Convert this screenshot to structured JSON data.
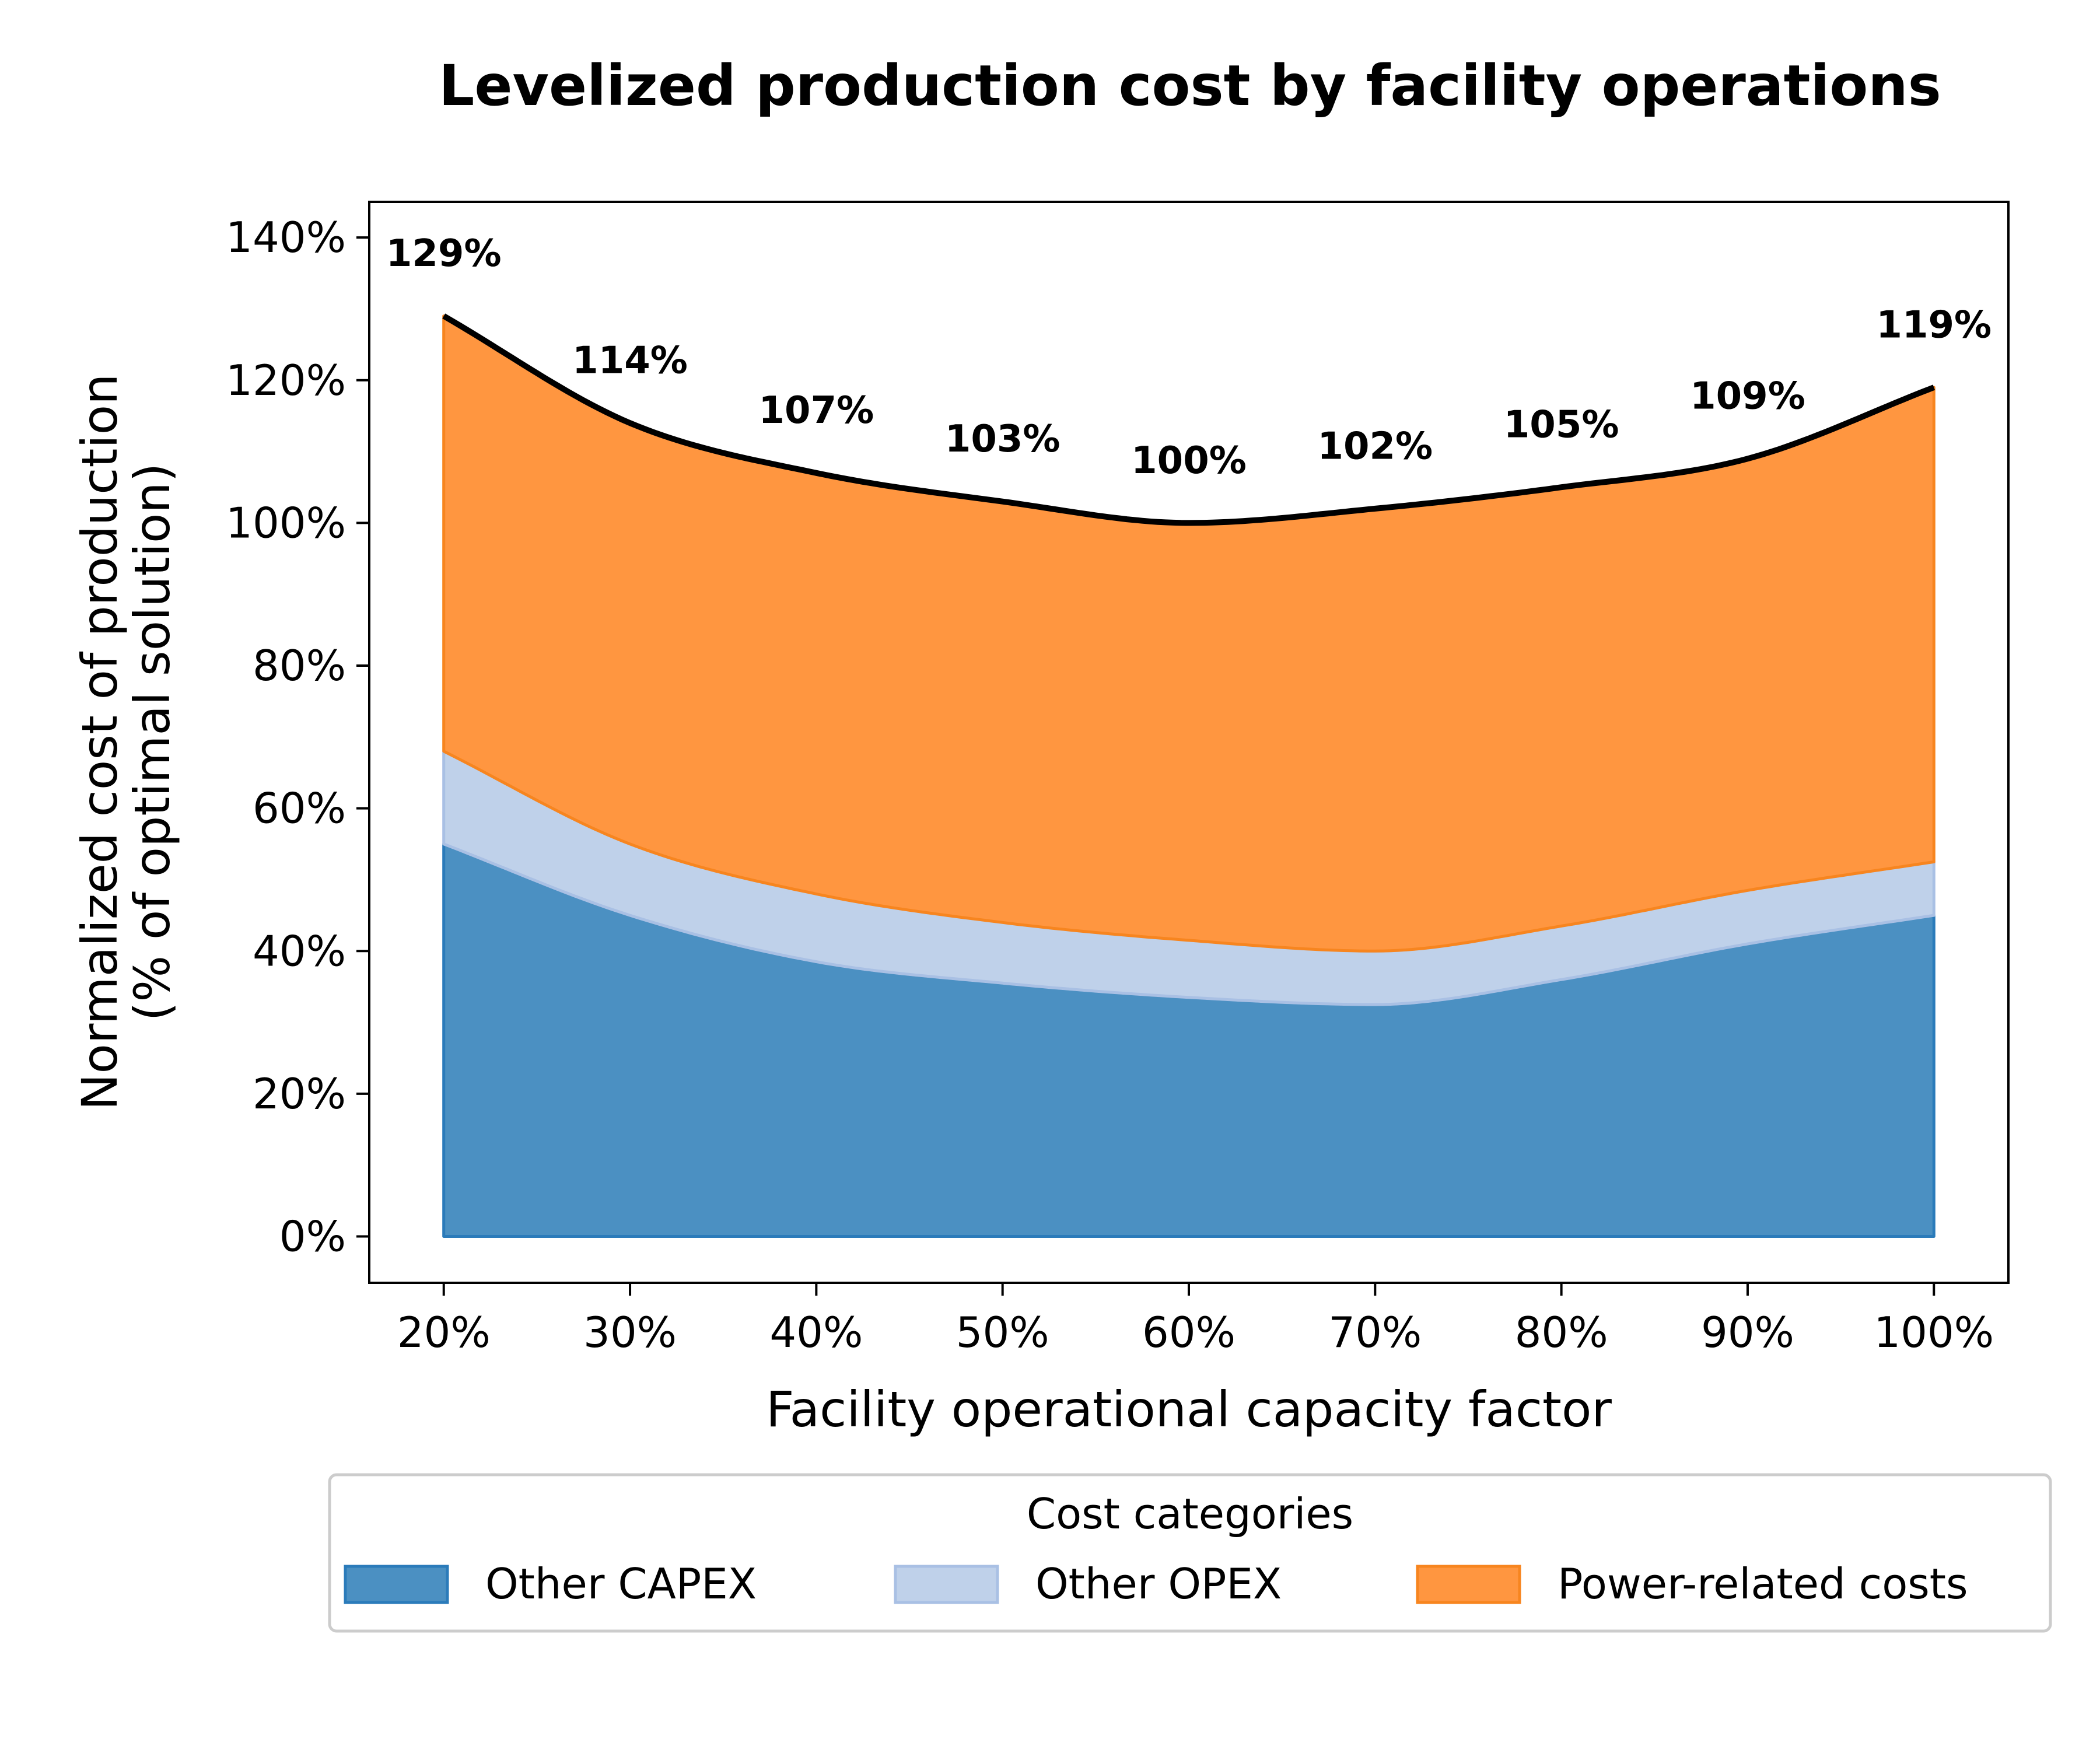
{
  "chart_data": {
    "type": "area",
    "stacked": true,
    "title": "Levelized production cost by facility operations",
    "xlabel": "Facility operational capacity factor",
    "ylabel_line1": "Normalized cost of production",
    "ylabel_line2": "(% of optimal solution)",
    "x": [
      20,
      30,
      40,
      50,
      60,
      70,
      80,
      90,
      100
    ],
    "x_tick_labels": [
      "20%",
      "30%",
      "40%",
      "50%",
      "60%",
      "70%",
      "80%",
      "90%",
      "100%"
    ],
    "xlim": [
      16,
      104
    ],
    "y_ticks": [
      0,
      20,
      40,
      60,
      80,
      100,
      120,
      140
    ],
    "y_tick_labels": [
      "0%",
      "20%",
      "40%",
      "60%",
      "80%",
      "100%",
      "120%",
      "140%"
    ],
    "ylim": [
      -6.5,
      145
    ],
    "series": [
      {
        "name": "Other CAPEX",
        "color": "#4b90c2",
        "edge": "#2b7bba",
        "values": [
          55,
          45,
          38.5,
          35.5,
          33.5,
          32.5,
          36,
          41,
          45
        ]
      },
      {
        "name": "Other OPEX",
        "color": "#bfd1ea",
        "edge": "#a9c0e4",
        "values": [
          13,
          10,
          9.5,
          8.5,
          8,
          7.5,
          7.5,
          7.5,
          7.5
        ]
      },
      {
        "name": "Power-related costs",
        "color": "#ff9640",
        "edge": "#f7851f",
        "values": [
          61,
          59,
          59,
          59,
          58.5,
          62,
          61.5,
          60.5,
          66.5
        ]
      }
    ],
    "total_line": {
      "color": "#000000",
      "values": [
        129,
        114,
        107,
        103,
        100,
        102,
        105,
        109,
        119
      ]
    },
    "value_labels": [
      "129%",
      "114%",
      "107%",
      "103%",
      "100%",
      "102%",
      "105%",
      "109%",
      "119%"
    ],
    "legend": {
      "title": "Cost categories",
      "position": "bottom-center",
      "columns": 3
    },
    "grid": false
  }
}
